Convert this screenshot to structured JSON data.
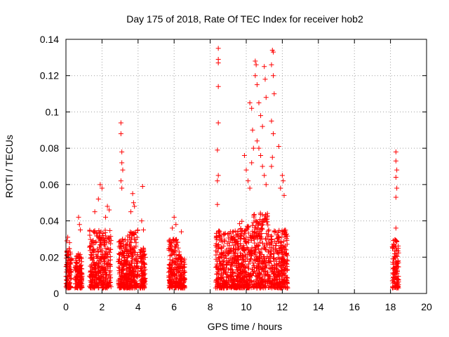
{
  "chart_data": {
    "type": "scatter",
    "title": "Day 175 of 2018, Rate Of TEC Index for receiver hob2",
    "xlabel": "GPS time / hours",
    "ylabel": "ROTI / TECUs",
    "xlim": [
      0,
      20
    ],
    "ylim": [
      0,
      0.14
    ],
    "x_ticks": [
      0,
      2,
      4,
      6,
      8,
      10,
      12,
      14,
      16,
      18,
      20
    ],
    "x_tick_labels": [
      "0",
      "2",
      "4",
      "6",
      "8",
      "10",
      "12",
      "14",
      "16",
      "18",
      "20"
    ],
    "y_ticks": [
      0,
      0.02,
      0.04,
      0.06,
      0.08,
      0.1,
      0.12,
      0.14
    ],
    "y_tick_labels": [
      "0",
      "0.02",
      "0.04",
      "0.06",
      "0.08",
      "0.1",
      "0.12",
      "0.14"
    ],
    "grid": true,
    "marker": "plus",
    "marker_color": "#ff0000",
    "clusters": [
      {
        "x_range": [
          0.0,
          0.3
        ],
        "base_max": 0.025,
        "outliers": [
          [
            0.1,
            0.031
          ],
          [
            0.2,
            0.028
          ],
          [
            0.05,
            0.029
          ]
        ]
      },
      {
        "x_range": [
          0.5,
          0.9
        ],
        "base_max": 0.022,
        "outliers": [
          [
            0.7,
            0.042
          ],
          [
            0.75,
            0.038
          ],
          [
            0.8,
            0.035
          ]
        ]
      },
      {
        "x_range": [
          1.3,
          2.5
        ],
        "base_max": 0.035,
        "outliers": [
          [
            1.6,
            0.045
          ],
          [
            1.8,
            0.052
          ],
          [
            1.9,
            0.06
          ],
          [
            2.0,
            0.058
          ],
          [
            2.3,
            0.048
          ],
          [
            2.4,
            0.046
          ],
          [
            2.2,
            0.042
          ]
        ]
      },
      {
        "x_range": [
          2.9,
          3.4
        ],
        "base_max": 0.03,
        "outliers": [
          [
            3.05,
            0.094
          ],
          [
            3.05,
            0.088
          ],
          [
            3.1,
            0.078
          ],
          [
            3.1,
            0.072
          ],
          [
            3.15,
            0.068
          ],
          [
            3.05,
            0.062
          ],
          [
            3.1,
            0.058
          ]
        ]
      },
      {
        "x_range": [
          3.4,
          4.0
        ],
        "base_max": 0.035,
        "outliers": [
          [
            3.7,
            0.055
          ],
          [
            3.75,
            0.05
          ],
          [
            3.8,
            0.048
          ],
          [
            3.6,
            0.045
          ]
        ]
      },
      {
        "x_range": [
          4.1,
          4.4
        ],
        "base_max": 0.025,
        "outliers": [
          [
            4.25,
            0.059
          ],
          [
            4.2,
            0.04
          ],
          [
            4.3,
            0.035
          ]
        ]
      },
      {
        "x_range": [
          5.7,
          6.3
        ],
        "base_max": 0.03,
        "outliers": [
          [
            6.0,
            0.042
          ],
          [
            6.1,
            0.038
          ],
          [
            5.9,
            0.036
          ]
        ]
      },
      {
        "x_range": [
          6.3,
          6.6
        ],
        "base_max": 0.02,
        "outliers": [
          [
            6.4,
            0.034
          ]
        ]
      },
      {
        "x_range": [
          8.3,
          9.6
        ],
        "base_max": 0.035,
        "outliers": [
          [
            8.45,
            0.135
          ],
          [
            8.45,
            0.129
          ],
          [
            8.45,
            0.127
          ],
          [
            8.45,
            0.114
          ],
          [
            8.45,
            0.094
          ],
          [
            8.4,
            0.079
          ],
          [
            8.45,
            0.065
          ],
          [
            8.4,
            0.062
          ],
          [
            8.4,
            0.049
          ]
        ]
      },
      {
        "x_range": [
          9.6,
          10.4
        ],
        "base_max": 0.04,
        "outliers": [
          [
            9.9,
            0.076
          ],
          [
            10.0,
            0.068
          ],
          [
            10.1,
            0.062
          ],
          [
            10.2,
            0.058
          ],
          [
            10.2,
            0.105
          ],
          [
            10.3,
            0.102
          ],
          [
            10.35,
            0.09
          ],
          [
            10.4,
            0.08
          ],
          [
            10.3,
            0.072
          ]
        ]
      },
      {
        "x_range": [
          10.4,
          11.2
        ],
        "base_max": 0.045,
        "outliers": [
          [
            10.5,
            0.128
          ],
          [
            10.55,
            0.126
          ],
          [
            10.5,
            0.12
          ],
          [
            10.6,
            0.115
          ],
          [
            10.7,
            0.105
          ],
          [
            10.8,
            0.098
          ],
          [
            10.9,
            0.092
          ],
          [
            11.0,
            0.125
          ],
          [
            11.05,
            0.118
          ],
          [
            11.1,
            0.108
          ],
          [
            10.6,
            0.084
          ],
          [
            10.7,
            0.08
          ],
          [
            10.8,
            0.076
          ],
          [
            10.9,
            0.07
          ],
          [
            11.0,
            0.065
          ],
          [
            11.1,
            0.06
          ]
        ]
      },
      {
        "x_range": [
          11.2,
          12.3
        ],
        "base_max": 0.035,
        "outliers": [
          [
            11.45,
            0.134
          ],
          [
            11.5,
            0.133
          ],
          [
            11.4,
            0.126
          ],
          [
            11.5,
            0.12
          ],
          [
            11.55,
            0.11
          ],
          [
            11.4,
            0.095
          ],
          [
            11.5,
            0.088
          ],
          [
            11.45,
            0.075
          ],
          [
            11.4,
            0.07
          ],
          [
            11.8,
            0.081
          ],
          [
            12.0,
            0.065
          ],
          [
            12.05,
            0.062
          ],
          [
            11.9,
            0.058
          ],
          [
            12.1,
            0.054
          ]
        ]
      },
      {
        "x_range": [
          18.1,
          18.45
        ],
        "base_max": 0.03,
        "outliers": [
          [
            18.3,
            0.078
          ],
          [
            18.3,
            0.073
          ],
          [
            18.35,
            0.068
          ],
          [
            18.3,
            0.064
          ],
          [
            18.35,
            0.058
          ],
          [
            18.3,
            0.053
          ],
          [
            18.3,
            0.036
          ]
        ]
      }
    ]
  }
}
